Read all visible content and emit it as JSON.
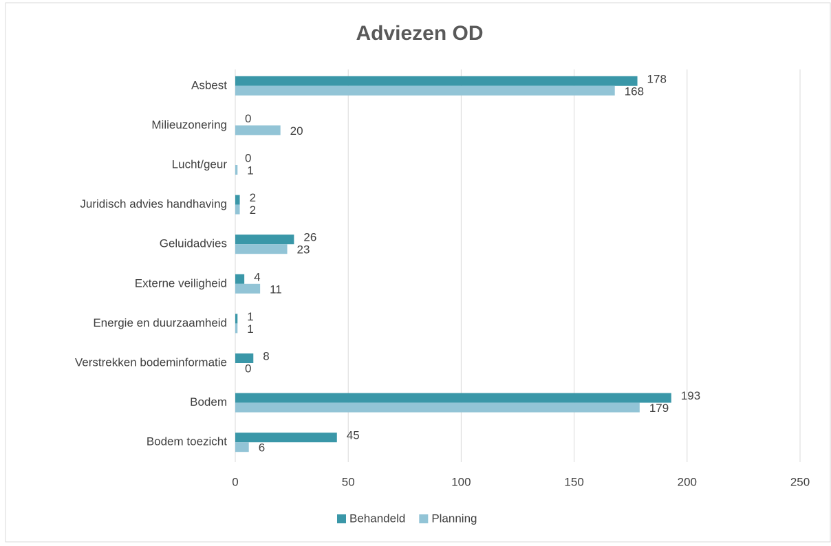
{
  "chart_data": {
    "type": "bar",
    "orientation": "horizontal",
    "title": "Adviezen OD",
    "categories": [
      "Asbest",
      "Milieuzonering",
      "Lucht/geur",
      "Juridisch advies handhaving",
      "Geluidadvies",
      "Externe veiligheid",
      "Energie en duurzaamheid",
      "Verstrekken bodeminformatie",
      "Bodem",
      "Bodem toezicht"
    ],
    "series": [
      {
        "name": "Behandeld",
        "color": "#3a97a8",
        "values": [
          178,
          0,
          0,
          2,
          26,
          4,
          1,
          8,
          193,
          45
        ]
      },
      {
        "name": "Planning",
        "color": "#92c4d6",
        "values": [
          168,
          20,
          1,
          2,
          23,
          11,
          1,
          0,
          179,
          6
        ]
      }
    ],
    "xlim": [
      0,
      250
    ],
    "xticks": [
      0,
      50,
      100,
      150,
      200,
      250
    ],
    "grid": true,
    "legend": "bottom"
  }
}
